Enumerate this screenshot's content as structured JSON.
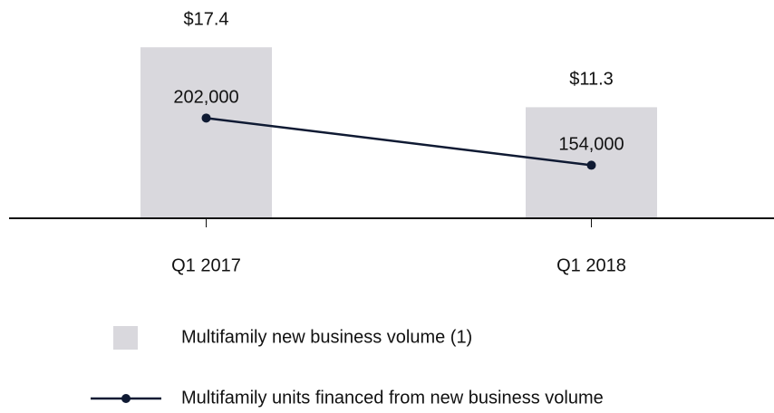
{
  "chart_data": {
    "type": "bar_line",
    "categories": [
      "Q1 2017",
      "Q1 2018"
    ],
    "series": [
      {
        "name": "Multifamily new business volume (1)",
        "type": "bar",
        "color": "#d9d8dd",
        "values": [
          17.4,
          11.3
        ],
        "value_labels": [
          "$17.4",
          "$11.3"
        ]
      },
      {
        "name": "Multifamily units financed from new business volume",
        "type": "line",
        "axis": "y2",
        "color": "#0f1a33",
        "values": [
          202000,
          154000
        ],
        "value_labels": [
          "202,000",
          "154,000"
        ]
      }
    ],
    "ylim": [
      0,
      20
    ],
    "y2lim": [
      100000,
      300000
    ],
    "legend": "bottom"
  }
}
